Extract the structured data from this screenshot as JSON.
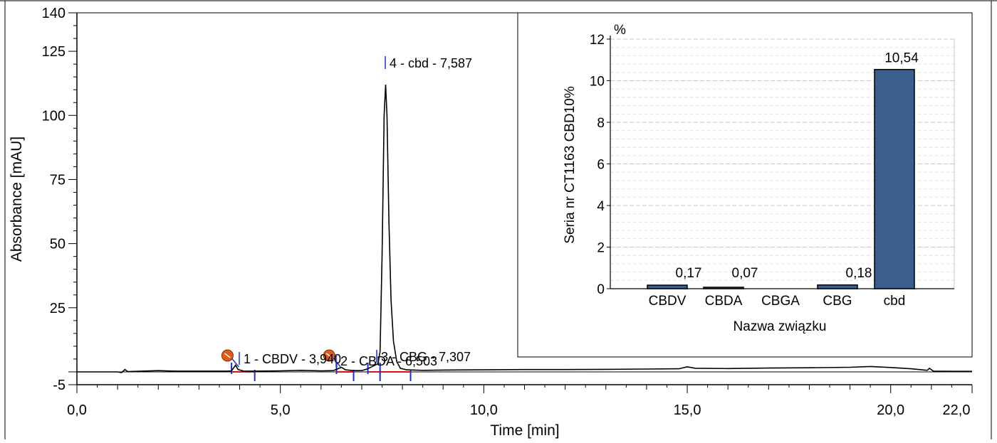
{
  "chart_data": [
    {
      "type": "line",
      "title": "",
      "xlabel": "Time [min]",
      "ylabel": "Absorbance [mAU]",
      "xlim": [
        0,
        22
      ],
      "ylim": [
        -5,
        140
      ],
      "x_ticks": [
        0,
        5,
        10,
        15,
        20,
        22
      ],
      "x_tick_labels": [
        "0,0",
        "5,0",
        "10,0",
        "15,0",
        "20,0",
        "22,0"
      ],
      "y_ticks": [
        -5,
        25,
        50,
        75,
        100,
        125,
        140
      ],
      "y_tick_labels": [
        "-5",
        "25",
        "50",
        "75",
        "100",
        "125",
        "140"
      ],
      "grid": false,
      "series": [
        {
          "name": "",
          "color": "#000000",
          "points": [
            [
              0.0,
              0.0
            ],
            [
              1.0,
              0.0
            ],
            [
              1.1,
              -0.3
            ],
            [
              1.18,
              0.9
            ],
            [
              1.25,
              0.1
            ],
            [
              1.6,
              0.3
            ],
            [
              2.0,
              0.5
            ],
            [
              2.4,
              0.3
            ],
            [
              3.0,
              0.3
            ],
            [
              3.4,
              0.3
            ],
            [
              3.7,
              0.3
            ],
            [
              3.8,
              0.4
            ],
            [
              3.9,
              2.6
            ],
            [
              3.96,
              0.9
            ],
            [
              4.1,
              0.3
            ],
            [
              4.4,
              0.3
            ],
            [
              5.0,
              0.4
            ],
            [
              5.5,
              0.6
            ],
            [
              6.0,
              0.4
            ],
            [
              6.3,
              0.5
            ],
            [
              6.38,
              1.0
            ],
            [
              6.5,
              1.8
            ],
            [
              6.6,
              0.8
            ],
            [
              6.8,
              0.5
            ],
            [
              7.0,
              0.5
            ],
            [
              7.15,
              1.2
            ],
            [
              7.3,
              2.4
            ],
            [
              7.4,
              3.2
            ],
            [
              7.45,
              8.0
            ],
            [
              7.5,
              45.0
            ],
            [
              7.55,
              100.0
            ],
            [
              7.587,
              112.0
            ],
            [
              7.62,
              100.0
            ],
            [
              7.67,
              58.0
            ],
            [
              7.72,
              28.0
            ],
            [
              7.78,
              12.0
            ],
            [
              7.86,
              4.0
            ],
            [
              7.95,
              1.4
            ],
            [
              8.1,
              0.8
            ],
            [
              8.5,
              0.6
            ],
            [
              9.0,
              0.7
            ],
            [
              10.0,
              0.8
            ],
            [
              11.0,
              0.9
            ],
            [
              12.0,
              0.9
            ],
            [
              13.0,
              1.0
            ],
            [
              14.0,
              1.1
            ],
            [
              14.8,
              1.2
            ],
            [
              15.0,
              2.0
            ],
            [
              15.2,
              1.4
            ],
            [
              16.0,
              1.3
            ],
            [
              17.0,
              1.5
            ],
            [
              18.0,
              1.6
            ],
            [
              19.0,
              1.8
            ],
            [
              19.5,
              2.1
            ],
            [
              20.0,
              1.7
            ],
            [
              20.5,
              1.2
            ],
            [
              20.9,
              0.6
            ],
            [
              20.95,
              1.4
            ],
            [
              21.05,
              0.3
            ],
            [
              21.5,
              0.2
            ],
            [
              22.0,
              0.2
            ]
          ]
        }
      ],
      "peaks": [
        {
          "label": "1 - CBDV - 3,940",
          "x": 3.94,
          "y": 2.6,
          "start": 3.8,
          "end": 4.37
        },
        {
          "label": "2 - CBDA - 6,503",
          "x": 6.503,
          "y": 1.8,
          "start": 6.38,
          "end": 6.8
        },
        {
          "label": "3 - CBG - 7,307",
          "x": 7.307,
          "y": 2.4,
          "start": 7.15,
          "end": 7.45
        },
        {
          "label": "4 - cbd - 7,587",
          "x": 7.587,
          "y": 112.0,
          "start": 7.45,
          "end": 8.2
        }
      ]
    },
    {
      "type": "bar",
      "title": "",
      "unit": "%",
      "xlabel": "Nazwa związku",
      "ylabel": "Seria nr CT1163 CBD10%",
      "ylim": [
        0,
        12
      ],
      "y_ticks": [
        0,
        2,
        4,
        6,
        8,
        10,
        12
      ],
      "y_tick_labels": [
        "0",
        "2",
        "4",
        "6",
        "8",
        "10",
        "12"
      ],
      "grid": true,
      "bar_color": "#3a5f8f",
      "categories": [
        "CBDV",
        "CBDA",
        "CBGA",
        "CBG",
        "cbd"
      ],
      "values": [
        0.17,
        0.07,
        0,
        0.18,
        10.54
      ],
      "value_labels": [
        "0,17",
        "0,07",
        "",
        "0,18",
        "10,54"
      ]
    }
  ]
}
